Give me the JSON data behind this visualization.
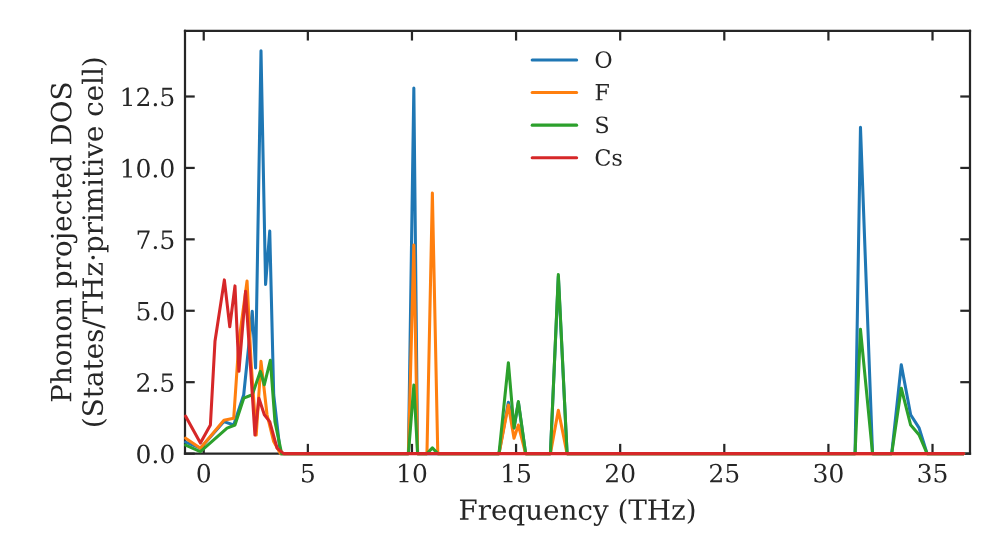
{
  "chart_data": {
    "type": "line",
    "xlabel": "Frequency (THz)",
    "ylabel": "Phonon projected DOS\n(States/THz·primitive cell)",
    "xlim": [
      -0.9,
      36.8
    ],
    "ylim": [
      0,
      14.8
    ],
    "xticks": [
      0,
      5,
      10,
      15,
      20,
      25,
      30,
      35
    ],
    "yticks": [
      {
        "value": 0,
        "label": "0.0"
      },
      {
        "value": 2.5,
        "label": "2.5"
      },
      {
        "value": 5,
        "label": "5.0"
      },
      {
        "value": 7.5,
        "label": "7.5"
      },
      {
        "value": 10,
        "label": "10.0"
      },
      {
        "value": 12.5,
        "label": "12.5"
      }
    ],
    "legend": "top",
    "grid": false,
    "marker": "none",
    "line_style": "solid",
    "series": [
      {
        "name": "O",
        "color": "#1f77b4",
        "x": [
          -0.87,
          -0.16,
          0.97,
          1.44,
          1.92,
          2.33,
          2.49,
          2.75,
          2.97,
          3.17,
          3.36,
          3.68,
          9.83,
          10.09,
          10.27,
          14.18,
          14.63,
          14.9,
          15.11,
          15.46,
          16.65,
          17.03,
          17.45,
          31.28,
          31.54,
          32.12,
          33.04,
          33.5,
          33.95,
          34.36,
          34.74,
          36.5
        ],
        "values": [
          0.4,
          0.19,
          1.12,
          1.0,
          2.06,
          4.98,
          3.0,
          14.1,
          5.92,
          7.79,
          2.06,
          0,
          0,
          12.8,
          0,
          0,
          1.8,
          0.9,
          1.8,
          0,
          0,
          6.2,
          0,
          0,
          11.42,
          0,
          0,
          3.11,
          1.36,
          0.89,
          0,
          0
        ]
      },
      {
        "name": "F",
        "color": "#ff7f0e",
        "x": [
          -0.87,
          -0.16,
          0.97,
          1.44,
          1.69,
          2.08,
          2.27,
          2.52,
          2.75,
          3.04,
          3.36,
          3.68,
          9.83,
          10.09,
          10.27,
          10.72,
          10.98,
          11.24,
          14.18,
          14.63,
          14.9,
          15.11,
          15.46,
          16.65,
          17.03,
          17.45,
          36.5
        ],
        "values": [
          0.54,
          0.19,
          1.17,
          1.24,
          3.93,
          6.04,
          3.23,
          0.65,
          3.23,
          1.36,
          0.42,
          0,
          0,
          7.3,
          0,
          0,
          9.12,
          0,
          0,
          1.7,
          0.54,
          1.0,
          0,
          0,
          1.52,
          0,
          0
        ]
      },
      {
        "name": "S",
        "color": "#2ca02c",
        "x": [
          -0.87,
          -0.16,
          1.12,
          1.5,
          1.92,
          2.33,
          2.72,
          2.91,
          3.2,
          3.42,
          3.74,
          9.83,
          10.09,
          10.27,
          10.72,
          10.98,
          11.24,
          14.18,
          14.63,
          14.9,
          15.11,
          15.46,
          16.65,
          17.03,
          17.45,
          31.28,
          31.54,
          32.12,
          33.04,
          33.5,
          33.95,
          34.36,
          34.74,
          36.5
        ],
        "values": [
          0.3,
          0.07,
          0.89,
          1.0,
          1.94,
          2.06,
          2.88,
          2.41,
          3.27,
          1.12,
          0,
          0,
          2.4,
          0,
          0,
          0.2,
          0,
          0,
          3.18,
          0.9,
          1.82,
          0,
          0,
          6.27,
          0,
          0,
          4.35,
          0,
          0,
          2.29,
          1.0,
          0.65,
          0,
          0
        ]
      },
      {
        "name": "Cs",
        "color": "#d62728",
        "x": [
          -0.87,
          -0.16,
          0.32,
          0.54,
          0.99,
          1.25,
          1.5,
          1.69,
          2.01,
          2.46,
          2.65,
          2.91,
          3.17,
          3.52,
          3.84,
          36.5
        ],
        "values": [
          1.31,
          0.37,
          1.0,
          3.93,
          6.08,
          4.44,
          5.87,
          2.88,
          5.68,
          0.65,
          1.94,
          1.36,
          1.12,
          0.19,
          0,
          0
        ]
      }
    ]
  }
}
